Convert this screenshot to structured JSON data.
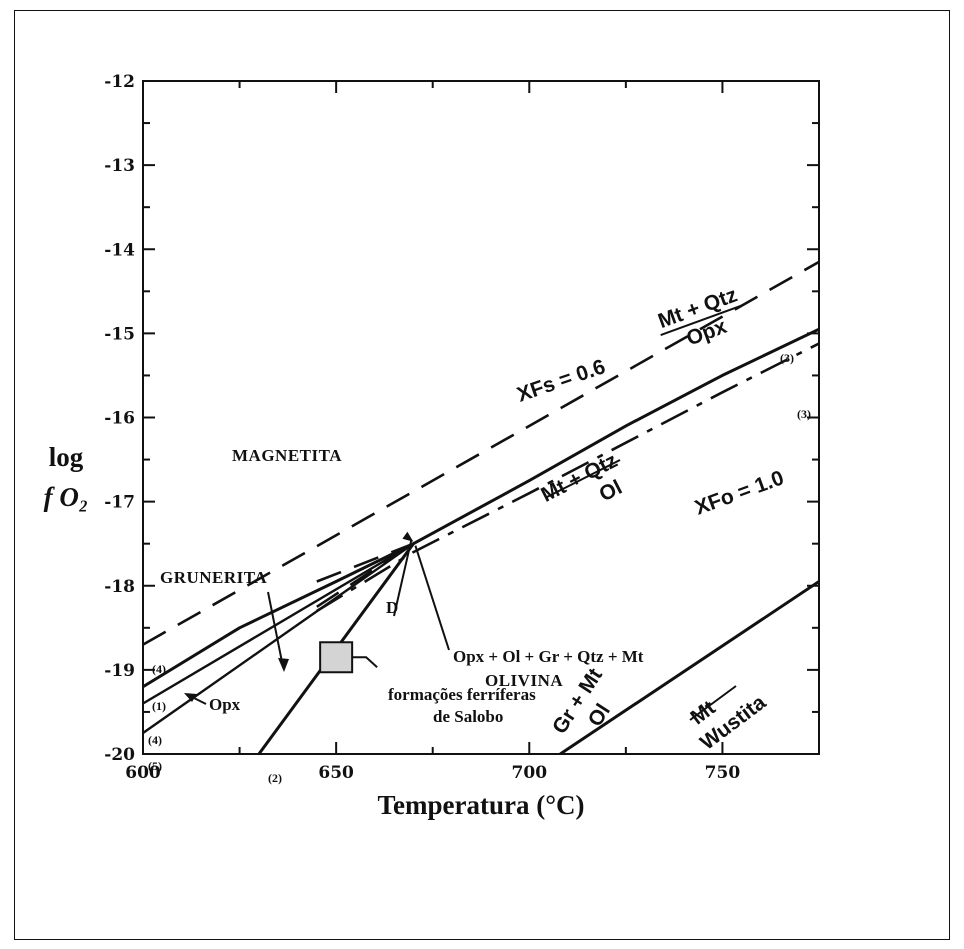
{
  "chart_data": {
    "type": "line",
    "xlabel": "Temperatura (°C)",
    "ylabel_line1": "log",
    "ylabel_line2": "f O₂",
    "xlim": [
      600,
      775
    ],
    "ylim": [
      -20,
      -12
    ],
    "x_ticks": [
      "600",
      "650",
      "700",
      "750"
    ],
    "y_ticks": [
      "-12",
      "-13",
      "-14",
      "-15",
      "-16",
      "-17",
      "-18",
      "-19",
      "-20"
    ],
    "grid": false,
    "regions": {
      "magnetita": "MAGNETITA",
      "grunerita": "GRUNERITA",
      "olivina": "OLIVINA"
    },
    "series": [
      {
        "style": "dashed",
        "label_top": "Mt + Qtz",
        "label_bottom": "Opx",
        "comp": "XFs = 0.6",
        "start_tag": "(4)",
        "x": [
          600,
          775
        ],
        "y": [
          -18.7,
          -14.15
        ]
      },
      {
        "style": "solid",
        "label_top": "Mt + Qtz",
        "label_bottom": "Ol",
        "start_tag": "(1)",
        "end_tag": "(3)",
        "x": [
          600,
          625,
          650,
          670,
          700,
          725,
          750,
          775
        ],
        "y": [
          -19.2,
          -18.5,
          -17.95,
          -17.5,
          -16.75,
          -16.1,
          -15.5,
          -14.95
        ]
      },
      {
        "style": "dash-dot",
        "comp": "XFo = 1.0",
        "end_tag": "(3)",
        "x": [
          645,
          670,
          700,
          725,
          750,
          775
        ],
        "y": [
          -18.3,
          -17.6,
          -16.9,
          -16.3,
          -15.7,
          -15.12
        ]
      },
      {
        "style": "solid",
        "start_tag": "(4)",
        "x": [
          600,
          670
        ],
        "y": [
          -19.4,
          -17.5
        ]
      },
      {
        "style": "solid",
        "label": "Opx",
        "start_tag": "(5)",
        "x": [
          600,
          670
        ],
        "y": [
          -19.75,
          -17.5
        ]
      },
      {
        "style": "solid",
        "label_top": "Gr + Mt",
        "label_bottom": "Ol",
        "start_tag": "(2)",
        "x": [
          630,
          670
        ],
        "y": [
          -20,
          -17.5
        ]
      },
      {
        "style": "solid",
        "label_top": "Mt",
        "label_bottom": "Wustita",
        "x": [
          708,
          775
        ],
        "y": [
          -20,
          -17.95
        ]
      },
      {
        "style": "dashed",
        "x": [
          645,
          670
        ],
        "y": [
          -17.95,
          -17.5
        ]
      },
      {
        "style": "dashed",
        "x": [
          645,
          670
        ],
        "y": [
          -18.25,
          -17.5
        ]
      }
    ],
    "annotations": {
      "invariant_point_label": "D",
      "invariant_point": [
        670,
        -17.5
      ],
      "assemblage": "Opx + Ol + Gr + Qtz + Mt",
      "sample_box_line1": "formações ferríferas",
      "sample_box_line2": "de Salobo",
      "sample_box": [
        650,
        -18.85
      ]
    }
  }
}
